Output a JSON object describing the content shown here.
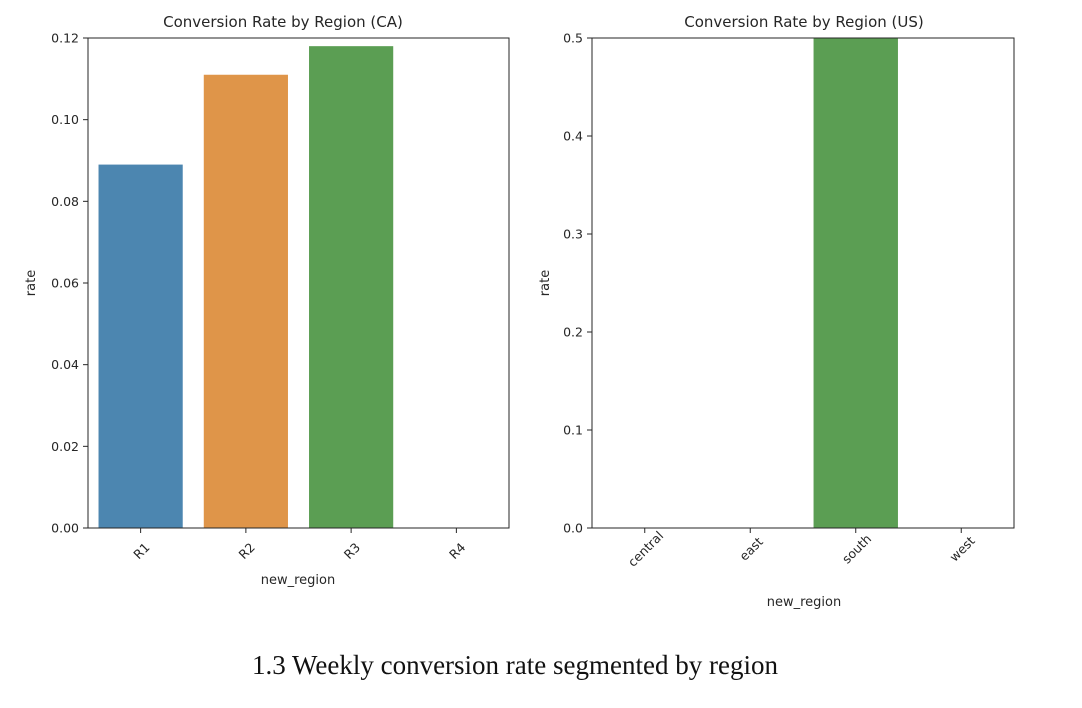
{
  "figure": {
    "caption": "1.3 Weekly conversion rate segmented by region"
  },
  "chart_data": [
    {
      "type": "bar",
      "title": "Conversion Rate by Region (CA)",
      "xlabel": "new_region",
      "ylabel": "rate",
      "categories": [
        "R1",
        "R2",
        "R3",
        "R4"
      ],
      "values": [
        0.089,
        0.111,
        0.118,
        0
      ],
      "colors": [
        "#4c86b0",
        "#df9549",
        "#5b9e53",
        "#c44e52"
      ],
      "ylim": [
        0,
        0.12
      ],
      "yticks": [
        0.0,
        0.02,
        0.04,
        0.06,
        0.08,
        0.1,
        0.12
      ],
      "ytick_labels": [
        "0.00",
        "0.02",
        "0.04",
        "0.06",
        "0.08",
        "0.10",
        "0.12"
      ],
      "grid": false
    },
    {
      "type": "bar",
      "title": "Conversion Rate by Region (US)",
      "xlabel": "new_region",
      "ylabel": "rate",
      "categories": [
        "central",
        "east",
        "south",
        "west"
      ],
      "values": [
        0,
        0,
        0.5,
        0
      ],
      "colors": [
        "#4c86b0",
        "#df9549",
        "#5b9e53",
        "#c44e52"
      ],
      "ylim": [
        0,
        0.5
      ],
      "yticks": [
        0.0,
        0.1,
        0.2,
        0.3,
        0.4,
        0.5
      ],
      "ytick_labels": [
        "0.0",
        "0.1",
        "0.2",
        "0.3",
        "0.4",
        "0.5"
      ],
      "grid": false
    }
  ]
}
